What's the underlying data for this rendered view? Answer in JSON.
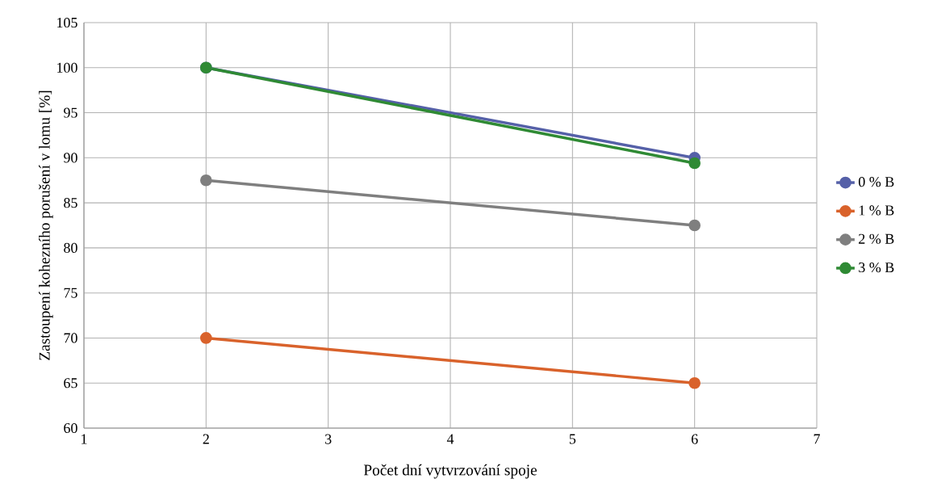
{
  "chart_data": {
    "type": "line",
    "xlabel": "Počet dní vytvrzování spoje",
    "ylabel": "Zastoupení kohezního porušení v lomu [%]",
    "x": [
      2,
      6
    ],
    "series": [
      {
        "name": "0 % B",
        "color": "#5560a8",
        "values": [
          100,
          90
        ]
      },
      {
        "name": "1 % B",
        "color": "#d9622b",
        "values": [
          70,
          65
        ]
      },
      {
        "name": "2 % B",
        "color": "#7f7f7f",
        "values": [
          87.5,
          82.5
        ]
      },
      {
        "name": "3 % B",
        "color": "#2f8a34",
        "values": [
          100,
          89.4
        ]
      }
    ],
    "xlim": [
      1,
      7
    ],
    "ylim": [
      60,
      105
    ],
    "xticks": [
      1,
      2,
      3,
      4,
      5,
      6,
      7
    ],
    "yticks": [
      60,
      65,
      70,
      75,
      80,
      85,
      90,
      95,
      100,
      105
    ],
    "grid": true,
    "legend": "right",
    "marker": "circle",
    "line_style": "solid"
  }
}
